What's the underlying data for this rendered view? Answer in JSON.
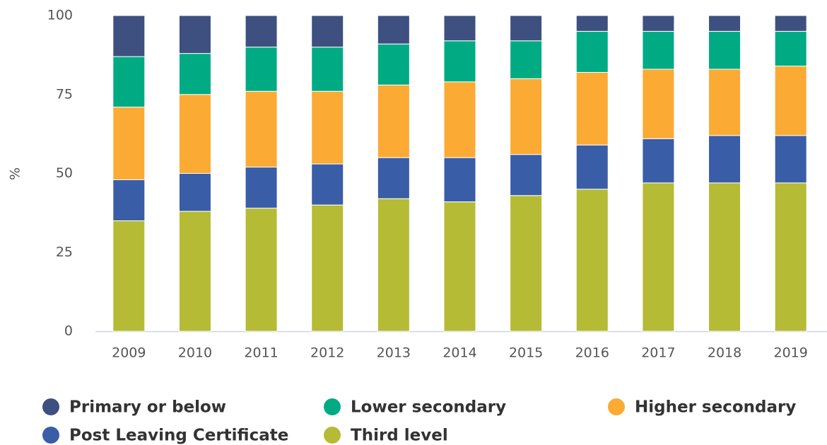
{
  "chart_data": {
    "type": "stacked_bar",
    "y_label": "%",
    "categories": [
      "2009",
      "2010",
      "2011",
      "2012",
      "2013",
      "2014",
      "2015",
      "2016",
      "2017",
      "2018",
      "2019"
    ],
    "series": [
      {
        "name": "Primary or below",
        "color": "#3d5080",
        "values": [
          13,
          12,
          10,
          10,
          9,
          8,
          8,
          5,
          5,
          5,
          5
        ]
      },
      {
        "name": "Lower secondary",
        "color": "#00ab84",
        "values": [
          16,
          13,
          14,
          14,
          13,
          13,
          12,
          13,
          12,
          12,
          11
        ]
      },
      {
        "name": "Higher secondary",
        "color": "#fbaa34",
        "values": [
          23,
          25,
          24,
          23,
          23,
          24,
          24,
          23,
          22,
          21,
          22
        ]
      },
      {
        "name": "Post Leaving Certificate",
        "color": "#3a5da8",
        "values": [
          13,
          12,
          13,
          13,
          13,
          14,
          13,
          14,
          14,
          15,
          15
        ]
      },
      {
        "name": "Third level",
        "color": "#b5bb35",
        "values": [
          35,
          38,
          39,
          40,
          42,
          41,
          43,
          45,
          47,
          47,
          47
        ]
      }
    ],
    "ylim": [
      0,
      100
    ],
    "yticks": [
      0,
      25,
      50,
      75,
      100
    ],
    "grid": false
  }
}
